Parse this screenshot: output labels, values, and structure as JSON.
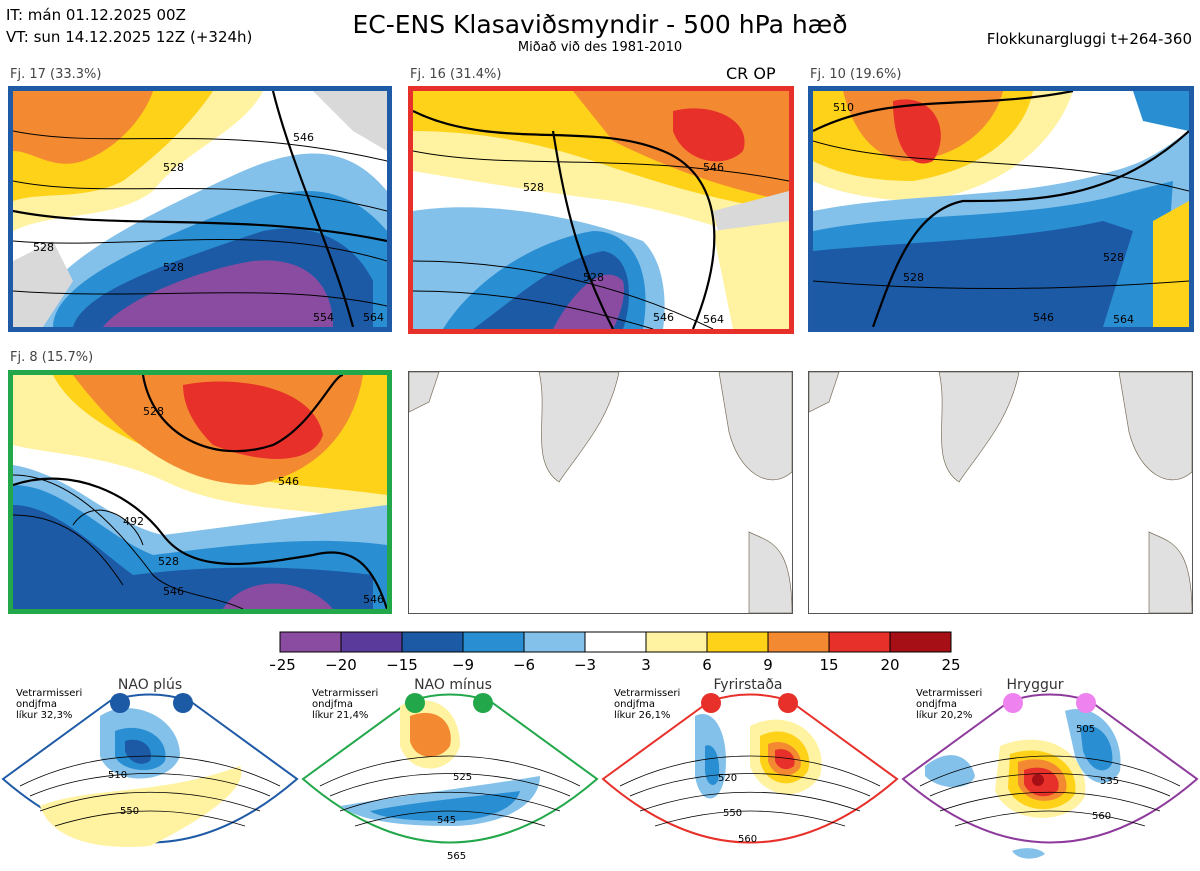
{
  "header": {
    "it_line": "IT: mán 01.12.2025 00Z",
    "vt_line": "VT: sun 14.12.2025 12Z  (+324h)",
    "title": "EC-ENS Klasaviðsmyndir - 500 hPa hæð",
    "subtitle": "Miðað við des 1981-2010",
    "window": "Flokkunargluggi t+264-360"
  },
  "panels": [
    {
      "label": "Fj. 17 (33.3%)",
      "frame_color": "#1f5aa6",
      "contours": [
        "528",
        "528",
        "528",
        "546",
        "554",
        "564"
      ]
    },
    {
      "label": "Fj. 16 (31.4%)",
      "frame_color": "#e8302a",
      "badge": "CR OP",
      "contours": [
        "528",
        "546",
        "546",
        "528",
        "564"
      ]
    },
    {
      "label": "Fj. 10 (19.6%)",
      "frame_color": "#1f5aa6",
      "contours": [
        "510",
        "528",
        "528",
        "546",
        "564"
      ]
    },
    {
      "label": "Fj. 8 (15.7%)",
      "frame_color": "#22a84a",
      "contours": [
        "528",
        "546",
        "492",
        "528",
        "546",
        "546"
      ]
    }
  ],
  "colorbar": {
    "ticks": [
      "−25",
      "−20",
      "−15",
      "−9",
      "−6",
      "−3",
      "3",
      "6",
      "9",
      "15",
      "20",
      "25"
    ],
    "colors": [
      "#8a4ca0",
      "#5a3a9a",
      "#1c5aa6",
      "#2a8fd2",
      "#84c1ea",
      "#ffffff",
      "#fff2a0",
      "#ffd21a",
      "#f38a32",
      "#e8302a",
      "#a50f15"
    ]
  },
  "regimes": [
    {
      "name": "NAO plús",
      "note_line1": "Vetrarmisseri",
      "note_line2": "ondjfma",
      "note_line3": "líkur 32,3%",
      "color": "#1c5aa6",
      "frame_color": "#1f5aa6",
      "contours": [
        "510",
        "550"
      ]
    },
    {
      "name": "NAO mínus",
      "note_line1": "Vetrarmisseri",
      "note_line2": "ondjfma",
      "note_line3": "líkur 21,4%",
      "color": "#22a84a",
      "frame_color": "#22a84a",
      "contours": [
        "525",
        "545",
        "565"
      ]
    },
    {
      "name": "Fyrirstaða",
      "note_line1": "Vetrarmisseri",
      "note_line2": "ondjfma",
      "note_line3": "líkur 26,1%",
      "color": "#e8302a",
      "frame_color": "#e8302a",
      "contours": [
        "520",
        "550",
        "560"
      ]
    },
    {
      "name": "Hryggur",
      "note_line1": "Vetrarmisseri",
      "note_line2": "ondjfma",
      "note_line3": "líkur 20,2%",
      "color": "#ee82ee",
      "frame_color": "#8e3a9c",
      "contours": [
        "505",
        "535",
        "560"
      ]
    }
  ]
}
